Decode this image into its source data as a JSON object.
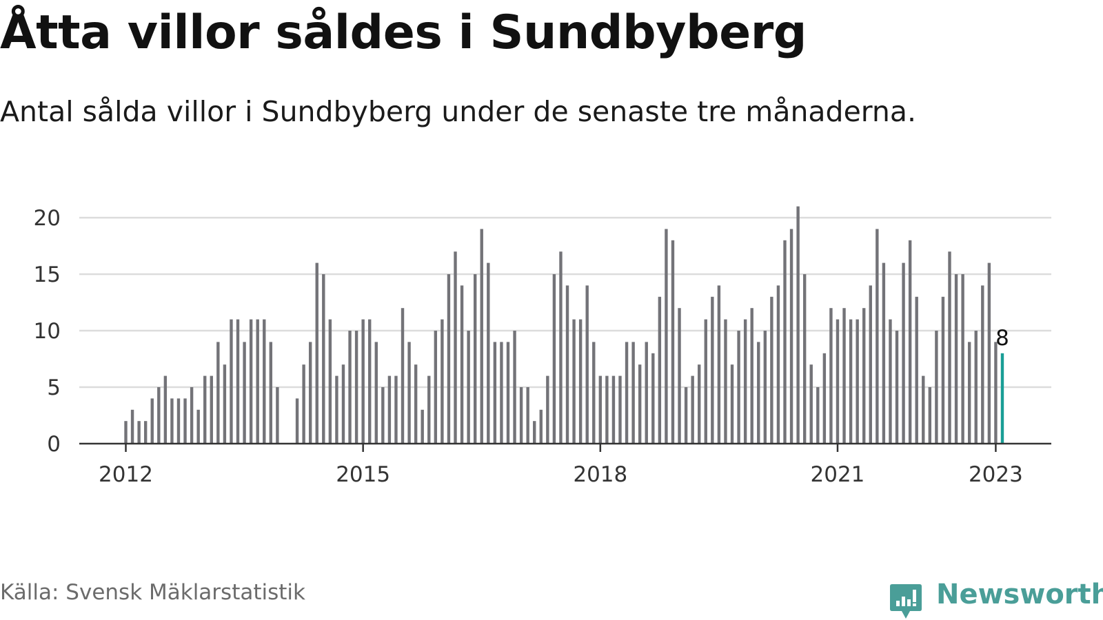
{
  "title": "Åtta villor såldes i Sundbyberg",
  "subtitle": "Antal sålda villor i Sundbyberg under de senaste tre månaderna.",
  "source": "Källa: Svensk Mäklarstatistik",
  "brand": {
    "name": "Newsworthy",
    "icon": "newsworthy-logo-icon",
    "color": "#4a9e98"
  },
  "colors": {
    "bar": "#737378",
    "highlight": "#1a9e96",
    "grid": "#dcdcdc",
    "axis": "#333333"
  },
  "chart_data": {
    "type": "bar",
    "title": "Åtta villor såldes i Sundbyberg",
    "subtitle": "Antal sålda villor i Sundbyberg under de senaste tre månaderna.",
    "xlabel": "",
    "ylabel": "",
    "ylim": [
      0,
      21
    ],
    "yticks": [
      0,
      5,
      10,
      15,
      20
    ],
    "xtick_labels": [
      "2012",
      "2015",
      "2018",
      "2021",
      "2023"
    ],
    "grid": true,
    "legend": "none",
    "x_start": "2011-06",
    "x_end": "2023-01",
    "highlight_last": true,
    "highlight_label": "8",
    "values": [
      0,
      0,
      0,
      0,
      0,
      0,
      0,
      2,
      3,
      2,
      2,
      4,
      5,
      6,
      4,
      4,
      4,
      5,
      3,
      6,
      6,
      9,
      7,
      11,
      11,
      9,
      11,
      11,
      11,
      9,
      5,
      0,
      0,
      4,
      7,
      9,
      16,
      15,
      11,
      6,
      7,
      10,
      10,
      11,
      11,
      9,
      5,
      6,
      6,
      12,
      9,
      7,
      3,
      6,
      10,
      11,
      15,
      17,
      14,
      10,
      15,
      19,
      16,
      9,
      9,
      9,
      10,
      5,
      5,
      2,
      3,
      6,
      15,
      17,
      14,
      11,
      11,
      14,
      9,
      6,
      6,
      6,
      6,
      9,
      9,
      7,
      9,
      8,
      13,
      19,
      18,
      12,
      5,
      6,
      7,
      11,
      13,
      14,
      11,
      7,
      10,
      11,
      12,
      9,
      10,
      13,
      14,
      18,
      19,
      21,
      15,
      7,
      5,
      8,
      12,
      11,
      12,
      11,
      11,
      12,
      14,
      19,
      16,
      11,
      10,
      16,
      18,
      13,
      6,
      5,
      10,
      13,
      17,
      15,
      15,
      9,
      10,
      14,
      16,
      9,
      8
    ]
  }
}
